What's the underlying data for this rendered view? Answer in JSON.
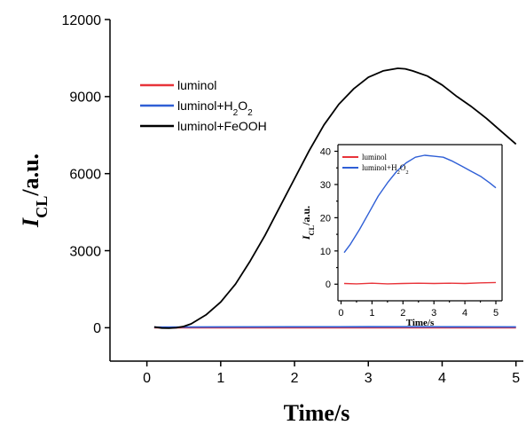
{
  "chart_data": [
    {
      "type": "line",
      "xlabel": "Time/s",
      "ylabel_main": "I",
      "ylabel_sub": "CL",
      "ylabel_rest": "/a.u.",
      "xlim": [
        -0.5,
        5.1
      ],
      "ylim": [
        -1300,
        12000
      ],
      "xticks": [
        0,
        1,
        2,
        3,
        4,
        5
      ],
      "yticks": [
        0,
        3000,
        6000,
        9000,
        12000
      ],
      "xtick_labels": [
        "0",
        "1",
        "2",
        "3",
        "4",
        "5"
      ],
      "ytick_labels": [
        "0",
        "3000",
        "6000",
        "9000",
        "12000"
      ],
      "legend_position": "top-left",
      "grid": false,
      "series": [
        {
          "legend_parts": [
            "luminol",
            "",
            "",
            "",
            ""
          ],
          "color": "#e8343a",
          "x": [
            0.1,
            5.0
          ],
          "y": [
            0,
            0
          ]
        },
        {
          "legend_parts": [
            "luminol+H",
            "2",
            "O",
            "2",
            ""
          ],
          "color": "#2f5fd6",
          "x": [
            0.1,
            0.5,
            1.0,
            2.0,
            3.0,
            4.0,
            5.0
          ],
          "y": [
            20,
            25,
            30,
            35,
            38,
            35,
            30
          ]
        },
        {
          "legend_parts": [
            "luminol+FeOOH",
            "",
            "",
            "",
            ""
          ],
          "color": "#000000",
          "x": [
            0.1,
            0.2,
            0.3,
            0.4,
            0.5,
            0.6,
            0.8,
            1.0,
            1.2,
            1.4,
            1.6,
            1.8,
            2.0,
            2.2,
            2.4,
            2.6,
            2.8,
            3.0,
            3.2,
            3.4,
            3.5,
            3.6,
            3.8,
            4.0,
            4.2,
            4.4,
            4.6,
            4.8,
            5.0
          ],
          "y": [
            30,
            -10,
            -20,
            0,
            50,
            150,
            500,
            1000,
            1700,
            2600,
            3600,
            4700,
            5800,
            6900,
            7900,
            8700,
            9300,
            9750,
            10000,
            10100,
            10080,
            10000,
            9800,
            9450,
            9000,
            8600,
            8150,
            7650,
            7150
          ]
        }
      ]
    },
    {
      "type": "line",
      "xlabel": "Time/s",
      "ylabel_main": "I",
      "ylabel_sub": "CL",
      "ylabel_rest": "/a.u.",
      "xlim": [
        -0.1,
        5.2
      ],
      "ylim": [
        -5,
        42
      ],
      "xticks": [
        0,
        1,
        2,
        3,
        4,
        5
      ],
      "yticks": [
        0,
        10,
        20,
        30,
        40
      ],
      "xtick_labels": [
        "0",
        "1",
        "2",
        "3",
        "4",
        "5"
      ],
      "ytick_labels": [
        "0",
        "10",
        "20",
        "30",
        "40"
      ],
      "legend_position": "top-left",
      "grid": false,
      "series": [
        {
          "legend_parts": [
            "luminol",
            "",
            "",
            "",
            ""
          ],
          "color": "#e8343a",
          "x": [
            0.1,
            0.5,
            1.0,
            1.5,
            2.0,
            2.5,
            3.0,
            3.5,
            4.0,
            4.5,
            5.0
          ],
          "y": [
            0.2,
            0.1,
            0.3,
            0.1,
            0.2,
            0.3,
            0.2,
            0.3,
            0.2,
            0.4,
            0.5
          ]
        },
        {
          "legend_parts": [
            "luminol+H",
            "2",
            "O",
            "2",
            ""
          ],
          "color": "#2f5fd6",
          "x": [
            0.1,
            0.3,
            0.6,
            0.9,
            1.2,
            1.5,
            1.8,
            2.1,
            2.4,
            2.7,
            3.0,
            3.3,
            3.6,
            3.9,
            4.2,
            4.5,
            4.8,
            5.0
          ],
          "y": [
            9.5,
            12,
            16.5,
            21.5,
            26.5,
            30.5,
            34,
            36.5,
            38.2,
            38.8,
            38.5,
            38.2,
            37,
            35.5,
            34,
            32.5,
            30.5,
            29
          ]
        }
      ]
    }
  ]
}
